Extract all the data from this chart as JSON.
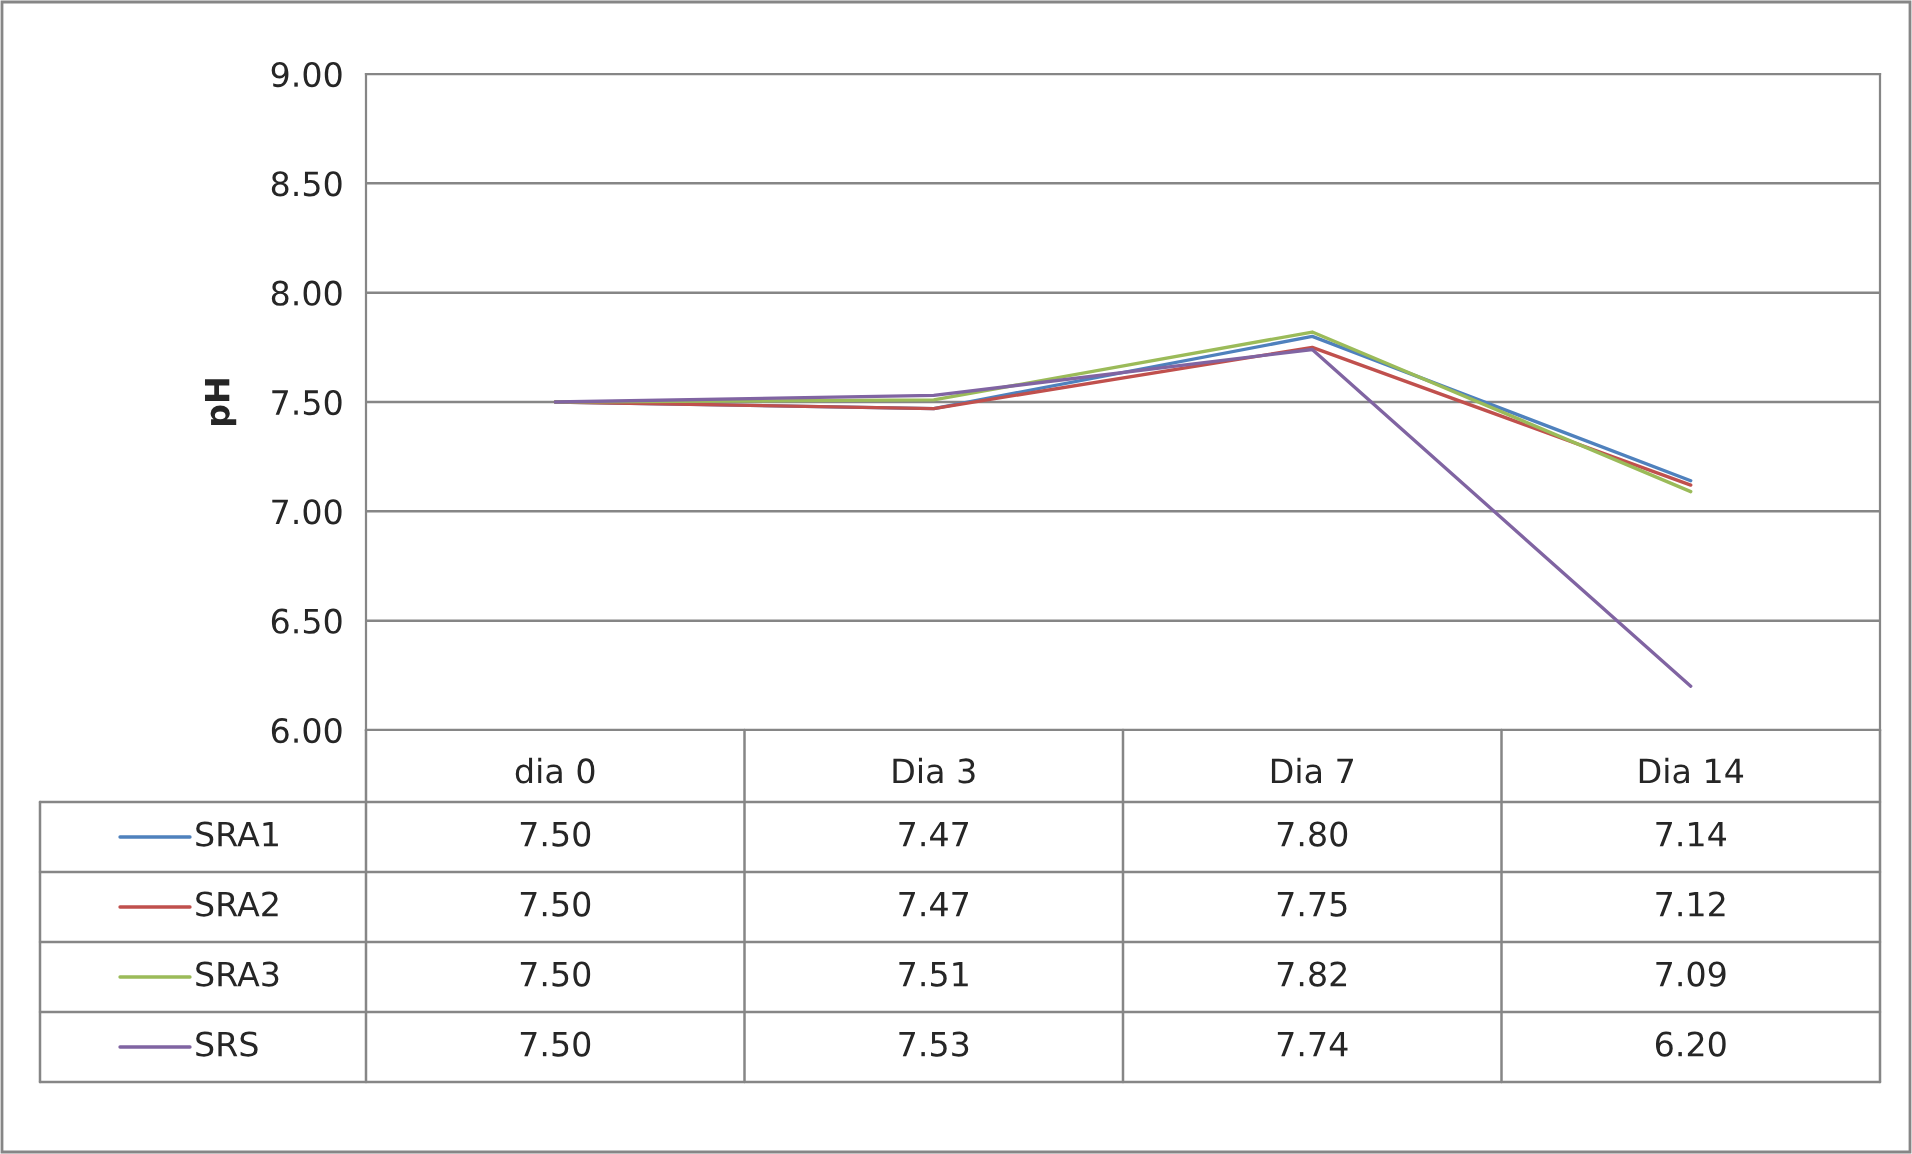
{
  "chart_data": {
    "type": "line",
    "ylabel": "pH",
    "categories": [
      "dia 0",
      "Dia 3",
      "Dia 7",
      "Dia 14"
    ],
    "series": [
      {
        "name": "SRA1",
        "color": "#4f81bd",
        "values": [
          7.5,
          7.47,
          7.8,
          7.14
        ],
        "value_labels": [
          "7.50",
          "7.47",
          "7.80",
          "7.14"
        ]
      },
      {
        "name": "SRA2",
        "color": "#c0504d",
        "values": [
          7.5,
          7.47,
          7.75,
          7.12
        ],
        "value_labels": [
          "7.50",
          "7.47",
          "7.75",
          "7.12"
        ]
      },
      {
        "name": "SRA3",
        "color": "#9bbb59",
        "values": [
          7.5,
          7.51,
          7.82,
          7.09
        ],
        "value_labels": [
          "7.50",
          "7.51",
          "7.82",
          "7.09"
        ]
      },
      {
        "name": "SRS",
        "color": "#8064a2",
        "values": [
          7.5,
          7.53,
          7.74,
          6.2
        ],
        "value_labels": [
          "7.50",
          "7.53",
          "7.74",
          "6.20"
        ]
      }
    ],
    "ylim": [
      6.0,
      9.0
    ],
    "yticks": [
      {
        "value": 6.0,
        "label": "6.00"
      },
      {
        "value": 6.5,
        "label": "6.50"
      },
      {
        "value": 7.0,
        "label": "7.00"
      },
      {
        "value": 7.5,
        "label": "7.50"
      },
      {
        "value": 8.0,
        "label": "8.00"
      },
      {
        "value": 8.5,
        "label": "8.50"
      },
      {
        "value": 9.0,
        "label": "9.00"
      }
    ],
    "grid": "y",
    "legend": "bottom",
    "marker": "none",
    "line_style": "solid"
  }
}
